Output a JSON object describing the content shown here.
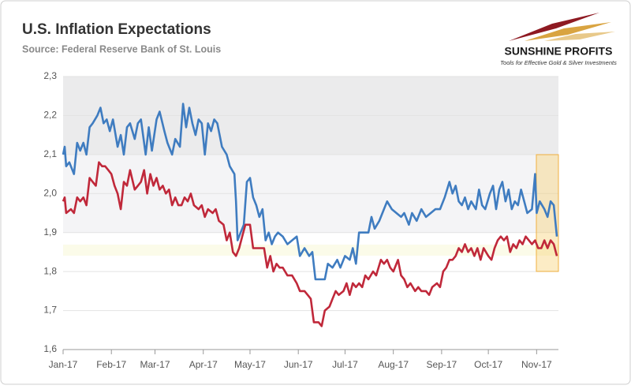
{
  "chart_data": {
    "type": "line",
    "title": "U.S. Inflation Expectations",
    "subtitle": "Source: Federal Reserve Bank of St. Louis",
    "xlim": [
      0,
      318
    ],
    "xticks": [
      {
        "value": 0,
        "label": "Jan-17"
      },
      {
        "value": 31,
        "label": "Feb-17"
      },
      {
        "value": 59,
        "label": "Mar-17"
      },
      {
        "value": 90,
        "label": "Apr-17"
      },
      {
        "value": 120,
        "label": "May-17"
      },
      {
        "value": 151,
        "label": "Jun-17"
      },
      {
        "value": 181,
        "label": "Jul-17"
      },
      {
        "value": 212,
        "label": "Aug-17"
      },
      {
        "value": 243,
        "label": "Sep-17"
      },
      {
        "value": 273,
        "label": "Oct-17"
      },
      {
        "value": 304,
        "label": "Nov-17"
      }
    ],
    "ylim": [
      1.6,
      2.3
    ],
    "yticks": [
      {
        "value": 1.6,
        "label": "1,6"
      },
      {
        "value": 1.7,
        "label": "1,7"
      },
      {
        "value": 1.8,
        "label": "1,8"
      },
      {
        "value": 1.9,
        "label": "1,9"
      },
      {
        "value": 2.0,
        "label": "2,0"
      },
      {
        "value": 2.1,
        "label": "2,1"
      },
      {
        "value": 2.2,
        "label": "2,2"
      },
      {
        "value": 2.3,
        "label": "2,3"
      }
    ],
    "series": [
      {
        "color": "#3f7cc0",
        "x": [
          0,
          1,
          2,
          4,
          7,
          9,
          11,
          13,
          15,
          17,
          19,
          22,
          24,
          26,
          28,
          30,
          32,
          35,
          37,
          39,
          41,
          43,
          46,
          48,
          50,
          53,
          55,
          57,
          60,
          62,
          65,
          67,
          70,
          72,
          75,
          77,
          79,
          81,
          83,
          85,
          87,
          89,
          91,
          93,
          95,
          97,
          99,
          102,
          105,
          107,
          110,
          111,
          112,
          114,
          116,
          118,
          120,
          122,
          124,
          126,
          128,
          130,
          132,
          134,
          136,
          138,
          141,
          144,
          147,
          150,
          152,
          155,
          158,
          160,
          162,
          165,
          168,
          170,
          173,
          176,
          178,
          181,
          184,
          186,
          188,
          190,
          193,
          196,
          198,
          200,
          203,
          206,
          208,
          211,
          214,
          217,
          219,
          222,
          224,
          227,
          230,
          233,
          236,
          239,
          242,
          245,
          248,
          250,
          252,
          254,
          256,
          258,
          260,
          262,
          265,
          267,
          269,
          271,
          274,
          276,
          278,
          280,
          282,
          284,
          286,
          288,
          290,
          292,
          294,
          296,
          298,
          301,
          303,
          304,
          306,
          309,
          311,
          313,
          315,
          317
        ],
        "values": [
          2.1,
          2.12,
          2.07,
          2.08,
          2.05,
          2.13,
          2.11,
          2.13,
          2.1,
          2.17,
          2.18,
          2.2,
          2.22,
          2.18,
          2.19,
          2.16,
          2.19,
          2.12,
          2.15,
          2.1,
          2.17,
          2.18,
          2.14,
          2.18,
          2.19,
          2.1,
          2.17,
          2.11,
          2.19,
          2.21,
          2.16,
          2.13,
          2.1,
          2.14,
          2.12,
          2.23,
          2.17,
          2.22,
          2.18,
          2.15,
          2.19,
          2.18,
          2.1,
          2.18,
          2.16,
          2.19,
          2.18,
          2.12,
          2.1,
          2.07,
          2.05,
          1.98,
          1.88,
          1.9,
          1.92,
          2.03,
          2.04,
          1.99,
          1.97,
          1.94,
          1.96,
          1.88,
          1.9,
          1.87,
          1.89,
          1.9,
          1.89,
          1.87,
          1.88,
          1.89,
          1.84,
          1.86,
          1.84,
          1.85,
          1.78,
          1.78,
          1.78,
          1.82,
          1.81,
          1.83,
          1.81,
          1.84,
          1.83,
          1.86,
          1.82,
          1.9,
          1.9,
          1.9,
          1.94,
          1.91,
          1.93,
          1.96,
          1.98,
          1.96,
          1.95,
          1.94,
          1.95,
          1.92,
          1.95,
          1.93,
          1.96,
          1.94,
          1.95,
          1.96,
          1.96,
          1.99,
          2.03,
          2.0,
          2.02,
          1.98,
          1.97,
          1.99,
          1.96,
          1.98,
          1.96,
          2.01,
          1.97,
          1.96,
          2.0,
          2.02,
          1.96,
          2.01,
          2.03,
          1.98,
          2.01,
          1.96,
          1.98,
          1.97,
          2.01,
          1.98,
          1.95,
          1.96,
          2.05,
          1.95,
          1.98,
          1.96,
          1.94,
          1.98,
          1.97,
          1.89
        ]
      },
      {
        "color": "#c0283a",
        "x": [
          0,
          1,
          2,
          5,
          7,
          9,
          11,
          13,
          15,
          17,
          19,
          21,
          23,
          25,
          27,
          29,
          31,
          33,
          35,
          37,
          39,
          41,
          43,
          46,
          48,
          50,
          52,
          54,
          56,
          58,
          60,
          62,
          64,
          66,
          68,
          70,
          72,
          74,
          76,
          78,
          80,
          82,
          84,
          87,
          89,
          91,
          93,
          96,
          98,
          100,
          103,
          105,
          107,
          109,
          111,
          113,
          115,
          117,
          120,
          122,
          124,
          127,
          129,
          131,
          133,
          135,
          137,
          139,
          141,
          144,
          147,
          150,
          152,
          155,
          157,
          159,
          161,
          164,
          166,
          168,
          171,
          173,
          175,
          177,
          180,
          182,
          184,
          186,
          188,
          190,
          192,
          194,
          196,
          199,
          201,
          204,
          206,
          208,
          210,
          212,
          215,
          217,
          219,
          221,
          223,
          226,
          228,
          230,
          233,
          235,
          237,
          240,
          242,
          244,
          246,
          248,
          250,
          252,
          254,
          256,
          258,
          260,
          262,
          264,
          266,
          268,
          270,
          273,
          275,
          277,
          279,
          281,
          283,
          285,
          287,
          289,
          291,
          293,
          295,
          297,
          299,
          301,
          303,
          305,
          307,
          309,
          311,
          313,
          315,
          317
        ],
        "values": [
          1.98,
          1.99,
          1.95,
          1.96,
          1.95,
          1.99,
          1.98,
          1.99,
          1.97,
          2.04,
          2.03,
          2.02,
          2.08,
          2.07,
          2.07,
          2.06,
          2.05,
          2.02,
          2.0,
          1.96,
          2.03,
          2.02,
          2.06,
          2.01,
          2.02,
          2.03,
          2.06,
          2.0,
          2.05,
          2.02,
          2.04,
          2.01,
          2.02,
          2.0,
          2.01,
          1.97,
          1.99,
          1.97,
          1.97,
          1.99,
          1.98,
          2.0,
          1.97,
          1.96,
          1.97,
          1.94,
          1.96,
          1.95,
          1.96,
          1.93,
          1.92,
          1.88,
          1.9,
          1.85,
          1.84,
          1.86,
          1.89,
          1.92,
          1.92,
          1.86,
          1.86,
          1.86,
          1.86,
          1.81,
          1.84,
          1.8,
          1.82,
          1.81,
          1.81,
          1.79,
          1.79,
          1.77,
          1.75,
          1.75,
          1.74,
          1.73,
          1.67,
          1.67,
          1.66,
          1.7,
          1.71,
          1.73,
          1.75,
          1.74,
          1.75,
          1.77,
          1.74,
          1.77,
          1.76,
          1.77,
          1.76,
          1.79,
          1.78,
          1.8,
          1.79,
          1.83,
          1.82,
          1.83,
          1.81,
          1.8,
          1.83,
          1.79,
          1.78,
          1.76,
          1.77,
          1.75,
          1.76,
          1.75,
          1.75,
          1.74,
          1.76,
          1.77,
          1.76,
          1.8,
          1.81,
          1.83,
          1.83,
          1.84,
          1.86,
          1.85,
          1.87,
          1.85,
          1.86,
          1.84,
          1.86,
          1.83,
          1.86,
          1.84,
          1.83,
          1.86,
          1.88,
          1.89,
          1.88,
          1.89,
          1.85,
          1.87,
          1.86,
          1.88,
          1.87,
          1.89,
          1.88,
          1.87,
          1.88,
          1.86,
          1.86,
          1.88,
          1.86,
          1.88,
          1.87,
          1.84
        ]
      }
    ]
  },
  "logo": {
    "name": "SUNSHINE PROFITS",
    "tagline": "Tools for Effective Gold & Silver Investments"
  }
}
